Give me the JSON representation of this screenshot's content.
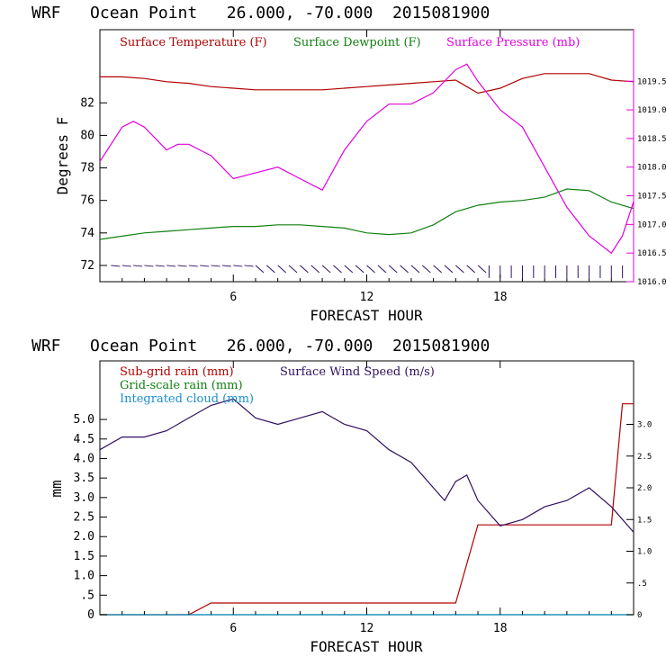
{
  "chart_data": [
    {
      "type": "line",
      "title": "WRF   Ocean Point   26.000, -70.000  2015081900",
      "xlabel": "FORECAST HOUR",
      "ylabel": "Degrees F",
      "xlim": [
        0,
        24
      ],
      "ylim": [
        71,
        86.5
      ],
      "y2lim": [
        1016.0,
        1020.4
      ],
      "x_ticks": [
        "6",
        "12",
        "18"
      ],
      "y_ticks": [
        "72",
        "74",
        "76",
        "78",
        "80",
        "82"
      ],
      "y2_ticks": [
        "1016.0",
        "1016.5",
        "1017.0",
        "1017.5",
        "1018.0",
        "1018.5",
        "1019.0",
        "1019.5"
      ],
      "series": [
        {
          "name": "Surface Temperature (F)",
          "color": "#b00000",
          "axis": "left",
          "x": [
            0,
            1,
            2,
            3,
            4,
            5,
            6,
            7,
            8,
            9,
            10,
            11,
            12,
            13,
            14,
            15,
            16,
            17,
            18,
            19,
            20,
            21,
            22,
            23,
            24
          ],
          "values": [
            83.6,
            83.6,
            83.5,
            83.3,
            83.2,
            83.0,
            82.9,
            82.8,
            82.8,
            82.8,
            82.8,
            82.9,
            83.0,
            83.1,
            83.2,
            83.3,
            83.4,
            82.6,
            82.9,
            83.5,
            83.8,
            83.8,
            83.8,
            83.4,
            83.3
          ]
        },
        {
          "name": "Surface Dewpoint (F)",
          "color": "#108010",
          "axis": "left",
          "x": [
            0,
            1,
            2,
            3,
            4,
            5,
            6,
            7,
            8,
            9,
            10,
            11,
            12,
            13,
            14,
            15,
            16,
            17,
            18,
            19,
            20,
            21,
            22,
            23,
            24
          ],
          "values": [
            73.6,
            73.8,
            74.0,
            74.1,
            74.2,
            74.3,
            74.4,
            74.4,
            74.5,
            74.5,
            74.4,
            74.3,
            74.0,
            73.9,
            74.0,
            74.5,
            75.3,
            75.7,
            75.9,
            76.0,
            76.2,
            76.7,
            76.6,
            75.9,
            75.5
          ]
        },
        {
          "name": "Surface Pressure (mb)",
          "color": "#e000e0",
          "axis": "right",
          "x": [
            0,
            1,
            1.5,
            2,
            3,
            3.5,
            4,
            5,
            6,
            7,
            8,
            9,
            10,
            11,
            12,
            13,
            14,
            15,
            16,
            16.5,
            17,
            18,
            19,
            20,
            21,
            22,
            23,
            23.5,
            24
          ],
          "values": [
            1018.1,
            1018.7,
            1018.8,
            1018.7,
            1018.3,
            1018.4,
            1018.4,
            1018.2,
            1017.8,
            1017.9,
            1018.0,
            1017.8,
            1017.6,
            1018.3,
            1018.8,
            1019.1,
            1019.1,
            1019.3,
            1019.7,
            1019.8,
            1019.5,
            1019.0,
            1018.7,
            1018.0,
            1017.3,
            1016.8,
            1016.5,
            1016.8,
            1017.4
          ]
        }
      ],
      "wind_barbs_label": ""
    },
    {
      "type": "line",
      "title": "WRF   Ocean Point   26.000, -70.000  2015081900",
      "xlabel": "FORECAST HOUR",
      "ylabel": "mm",
      "xlim": [
        0,
        24
      ],
      "ylim": [
        0,
        6.5
      ],
      "y2lim": [
        0,
        4.0
      ],
      "x_ticks": [
        "6",
        "12",
        "18"
      ],
      "y_ticks": [
        "0",
        ".5",
        "1.0",
        "1.5",
        "2.0",
        "2.5",
        "3.0",
        "3.5",
        "4.0",
        "4.5",
        "5.0"
      ],
      "y2_ticks": [
        "0",
        ".5",
        "1.0",
        "1.5",
        "2.0",
        "2.5",
        "3.0"
      ],
      "series": [
        {
          "name": "Sub-grid rain (mm)",
          "color": "#b00000",
          "axis": "left",
          "x": [
            0,
            4,
            5,
            16,
            17,
            23,
            23.5,
            24
          ],
          "values": [
            0,
            0,
            0.3,
            0.3,
            2.3,
            2.3,
            5.4,
            5.4
          ]
        },
        {
          "name": "Grid-scale rain (mm)",
          "color": "#108010",
          "axis": "left",
          "x": [
            0,
            24
          ],
          "values": [
            0,
            0
          ]
        },
        {
          "name": "Integrated cloud (mm)",
          "color": "#1a8fd0",
          "axis": "left",
          "x": [
            0,
            24
          ],
          "values": [
            0,
            0
          ]
        },
        {
          "name": "Surface Wind Speed (m/s)",
          "color": "#301060",
          "axis": "right",
          "x": [
            0,
            1,
            2,
            3,
            4,
            5,
            6,
            7,
            8,
            9,
            10,
            11,
            12,
            13,
            14,
            15,
            15.5,
            16,
            16.5,
            17,
            18,
            19,
            20,
            21,
            22,
            23,
            24
          ],
          "values": [
            2.6,
            2.8,
            2.8,
            2.9,
            3.1,
            3.3,
            3.4,
            3.1,
            3.0,
            3.1,
            3.2,
            3.0,
            2.9,
            2.6,
            2.4,
            2.0,
            1.8,
            2.1,
            2.2,
            1.8,
            1.4,
            1.5,
            1.7,
            1.8,
            2.0,
            1.7,
            1.3
          ]
        }
      ]
    }
  ]
}
